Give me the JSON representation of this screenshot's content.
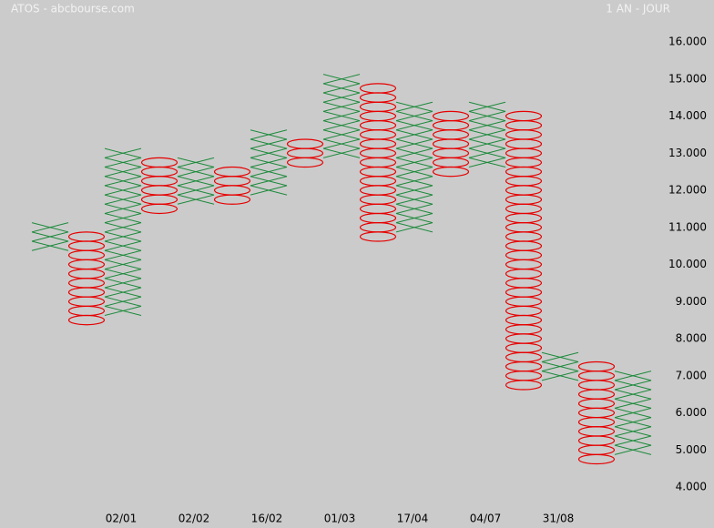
{
  "chart_data": {
    "type": "point-and-figure",
    "title": "ATOS - abcbourse.com",
    "subtitle": "1 AN - JOUR",
    "box_size": 0.25,
    "x_color": "#1e8a3c",
    "o_color": "#e60000",
    "categories": [
      null,
      null,
      "02/01",
      null,
      "02/02",
      null,
      "16/02",
      null,
      "01/03",
      null,
      "17/04",
      null,
      "04/07",
      null,
      "31/08",
      null,
      null
    ],
    "columns": [
      {
        "kind": "X",
        "low": 10.5,
        "high": 11.0
      },
      {
        "kind": "O",
        "low": 8.5,
        "high": 10.75
      },
      {
        "kind": "X",
        "low": 8.75,
        "high": 13.0
      },
      {
        "kind": "O",
        "low": 11.5,
        "high": 12.75
      },
      {
        "kind": "X",
        "low": 11.75,
        "high": 12.75
      },
      {
        "kind": "O",
        "low": 11.75,
        "high": 12.5
      },
      {
        "kind": "X",
        "low": 12.0,
        "high": 13.5
      },
      {
        "kind": "O",
        "low": 12.75,
        "high": 13.25
      },
      {
        "kind": "X",
        "low": 13.0,
        "high": 15.0
      },
      {
        "kind": "O",
        "low": 10.75,
        "high": 14.75
      },
      {
        "kind": "X",
        "low": 11.0,
        "high": 14.25
      },
      {
        "kind": "O",
        "low": 12.5,
        "high": 14.0
      },
      {
        "kind": "X",
        "low": 12.75,
        "high": 14.25
      },
      {
        "kind": "O",
        "low": 6.75,
        "high": 14.0
      },
      {
        "kind": "X",
        "low": 7.0,
        "high": 7.5
      },
      {
        "kind": "O",
        "low": 4.75,
        "high": 7.25
      },
      {
        "kind": "X",
        "low": 5.0,
        "high": 7.0
      }
    ],
    "ylim": [
      4,
      16
    ],
    "yticks": [
      {
        "value": 4,
        "label": "4.000"
      },
      {
        "value": 5,
        "label": "5.000"
      },
      {
        "value": 6,
        "label": "6.000"
      },
      {
        "value": 7,
        "label": "7.000"
      },
      {
        "value": 8,
        "label": "8.000"
      },
      {
        "value": 9,
        "label": "9.000"
      },
      {
        "value": 10,
        "label": "10.000"
      },
      {
        "value": 11,
        "label": "11.000"
      },
      {
        "value": 12,
        "label": "12.000"
      },
      {
        "value": 13,
        "label": "13.000"
      },
      {
        "value": 14,
        "label": "14.000"
      },
      {
        "value": 15,
        "label": "15.000"
      },
      {
        "value": 16,
        "label": "16.000"
      }
    ]
  }
}
